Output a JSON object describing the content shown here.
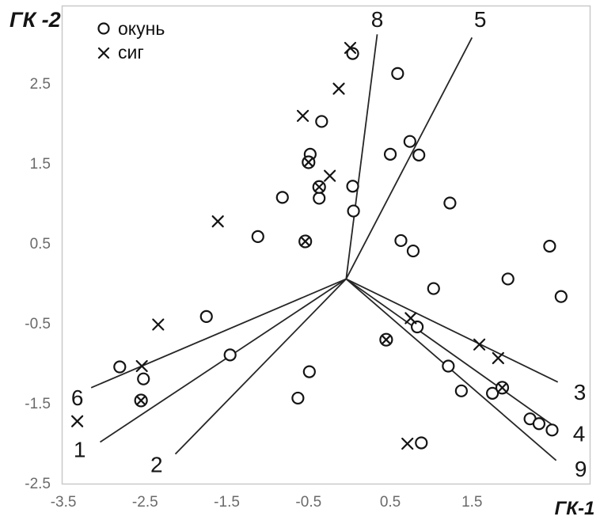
{
  "legend": {
    "items": [
      {
        "label": "окунь",
        "marker": "circle"
      },
      {
        "label": "сиг",
        "marker": "x"
      }
    ]
  },
  "chart_data": {
    "type": "scatter",
    "title": "",
    "xlabel": "ГК-1",
    "ylabel": "ГК -2",
    "xlim": [
      -3.52,
      2.95
    ],
    "ylim": [
      -2.52,
      3.47
    ],
    "x_ticks": [
      -3.5,
      -2.5,
      -1.5,
      -0.5,
      0.5,
      1.5
    ],
    "y_ticks": [
      2.5,
      1.5,
      0.5,
      -0.5,
      -1.5,
      -2.5
    ],
    "grid": false,
    "legend_position": "top-left",
    "series": [
      {
        "name": "окунь",
        "marker": "circle",
        "points": [
          [
            0.04,
            2.87
          ],
          [
            0.59,
            2.62
          ],
          [
            -0.34,
            2.02
          ],
          [
            -0.48,
            1.61
          ],
          [
            0.5,
            1.61
          ],
          [
            0.74,
            1.77
          ],
          [
            0.85,
            1.6
          ],
          [
            -0.82,
            1.07
          ],
          [
            -0.37,
            1.06
          ],
          [
            0.04,
            1.21
          ],
          [
            1.23,
            1.0
          ],
          [
            0.05,
            0.9
          ],
          [
            -1.12,
            0.58
          ],
          [
            0.63,
            0.53
          ],
          [
            0.78,
            0.4
          ],
          [
            2.45,
            0.46
          ],
          [
            1.94,
            0.05
          ],
          [
            1.03,
            -0.07
          ],
          [
            2.59,
            -0.17
          ],
          [
            -1.75,
            -0.42
          ],
          [
            0.83,
            -0.55
          ],
          [
            -1.46,
            -0.9
          ],
          [
            -2.81,
            -1.05
          ],
          [
            -2.52,
            -1.2
          ],
          [
            -0.49,
            -1.11
          ],
          [
            -0.63,
            -1.44
          ],
          [
            1.21,
            -1.04
          ],
          [
            1.37,
            -1.35
          ],
          [
            1.75,
            -1.38
          ],
          [
            2.21,
            -1.7
          ],
          [
            2.32,
            -1.76
          ],
          [
            2.48,
            -1.84
          ],
          [
            0.88,
            -2.0
          ]
        ]
      },
      {
        "name": "сиг",
        "marker": "x",
        "points": [
          [
            0.01,
            2.94
          ],
          [
            -0.13,
            2.43
          ],
          [
            -0.57,
            2.09
          ],
          [
            -0.24,
            1.34
          ],
          [
            -1.61,
            0.77
          ],
          [
            0.75,
            -0.44
          ],
          [
            -2.34,
            -0.52
          ],
          [
            -2.54,
            -1.04
          ],
          [
            1.59,
            -0.77
          ],
          [
            1.82,
            -0.94
          ],
          [
            -3.33,
            -1.73
          ],
          [
            0.71,
            -2.01
          ]
        ]
      },
      {
        "name": "окунь + сиг",
        "marker": "circle-x",
        "points": [
          [
            -0.5,
            1.51
          ],
          [
            -0.37,
            1.2
          ],
          [
            -0.54,
            0.52
          ],
          [
            0.45,
            -0.71
          ],
          [
            -2.55,
            -1.47
          ],
          [
            1.87,
            -1.31
          ]
        ]
      }
    ],
    "vectors": {
      "origin": [
        -0.04,
        0.05
      ],
      "items": [
        {
          "label": "1",
          "end": [
            -3.05,
            -1.99
          ],
          "label_pos": [
            -3.3,
            -2.08
          ]
        },
        {
          "label": "2",
          "end": [
            -2.13,
            -2.14
          ],
          "label_pos": [
            -2.36,
            -2.27
          ]
        },
        {
          "label": "3",
          "end": [
            2.55,
            -1.24
          ],
          "label_pos": [
            2.82,
            -1.36
          ]
        },
        {
          "label": "4",
          "end": [
            2.53,
            -1.81
          ],
          "label_pos": [
            2.81,
            -1.88
          ]
        },
        {
          "label": "5",
          "end": [
            1.5,
            3.07
          ],
          "label_pos": [
            1.6,
            3.3
          ]
        },
        {
          "label": "6",
          "end": [
            -3.16,
            -1.31
          ],
          "label_pos": [
            -3.33,
            -1.43
          ]
        },
        {
          "label": "8",
          "end": [
            0.34,
            3.11
          ],
          "label_pos": [
            0.34,
            3.3
          ]
        },
        {
          "label": "9",
          "end": [
            2.53,
            -2.22
          ],
          "label_pos": [
            2.83,
            -2.32
          ]
        }
      ]
    }
  }
}
